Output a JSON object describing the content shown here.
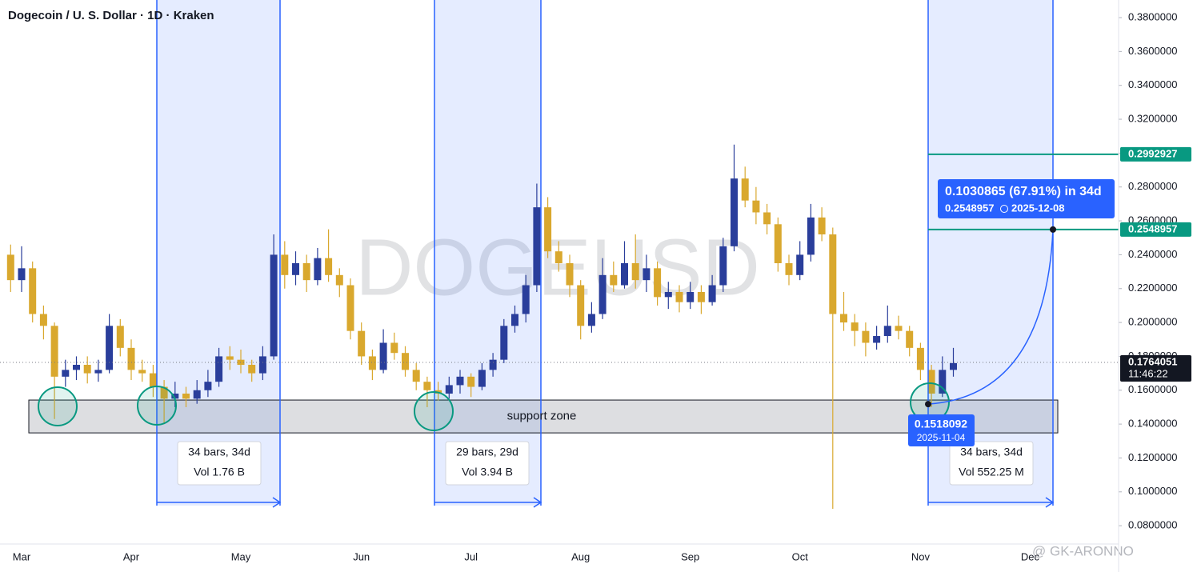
{
  "chart_data": {
    "type": "candlestick",
    "title": "Dogecoin / U. S. Dollar · 1D · Kraken",
    "watermark": "DOGEUSD",
    "categories": [
      null,
      "Mar",
      null,
      null,
      null,
      null,
      null,
      null,
      null,
      null,
      null,
      "Apr",
      null,
      null,
      null,
      null,
      null,
      null,
      null,
      null,
      null,
      "May",
      null,
      null,
      null,
      null,
      null,
      null,
      null,
      null,
      null,
      null,
      "Jun",
      null,
      null,
      null,
      null,
      null,
      null,
      null,
      null,
      null,
      "Jul",
      null,
      null,
      null,
      null,
      null,
      null,
      null,
      null,
      null,
      "Aug",
      null,
      null,
      null,
      null,
      null,
      null,
      null,
      null,
      null,
      "Sep",
      null,
      null,
      null,
      null,
      null,
      null,
      null,
      null,
      null,
      "Oct",
      null,
      null,
      null,
      null,
      null,
      null,
      null,
      null,
      null,
      null,
      "Nov",
      null,
      null,
      null,
      null,
      null,
      null,
      null,
      null,
      null,
      "Dec"
    ],
    "open": [
      0.24,
      0.225,
      0.232,
      0.205,
      0.198,
      0.168,
      0.172,
      0.175,
      0.17,
      0.172,
      0.198,
      0.185,
      0.172,
      0.17,
      0.162,
      0.155,
      0.158,
      0.155,
      0.16,
      0.165,
      0.18,
      0.178,
      0.175,
      0.17,
      0.18,
      0.24,
      0.228,
      0.235,
      0.225,
      0.238,
      0.228,
      0.222,
      0.195,
      0.18,
      0.172,
      0.188,
      0.182,
      0.172,
      0.165,
      0.16,
      0.158,
      0.163,
      0.168,
      0.162,
      0.172,
      0.178,
      0.198,
      0.205,
      0.222,
      0.268,
      0.242,
      0.235,
      0.222,
      0.198,
      0.205,
      0.228,
      0.222,
      0.235,
      0.225,
      0.232,
      0.215,
      0.218,
      0.212,
      0.218,
      0.212,
      0.222,
      0.245,
      0.285,
      0.272,
      0.265,
      0.258,
      0.235,
      0.228,
      0.24,
      0.262,
      0.252,
      0.205,
      0.2,
      0.195,
      0.188,
      0.192,
      0.198,
      0.195,
      0.185,
      0.172,
      0.158,
      0.172,
      null,
      null,
      null,
      null,
      null,
      null,
      null
    ],
    "high": [
      0.246,
      0.245,
      0.236,
      0.21,
      0.2,
      0.178,
      0.18,
      0.18,
      0.178,
      0.205,
      0.202,
      0.19,
      0.178,
      0.175,
      0.166,
      0.165,
      0.162,
      0.166,
      0.172,
      0.185,
      0.186,
      0.184,
      0.178,
      0.186,
      0.252,
      0.248,
      0.242,
      0.24,
      0.244,
      0.255,
      0.232,
      0.226,
      0.2,
      0.184,
      0.196,
      0.194,
      0.186,
      0.176,
      0.168,
      0.165,
      0.168,
      0.172,
      0.17,
      0.176,
      0.182,
      0.202,
      0.21,
      0.228,
      0.282,
      0.274,
      0.248,
      0.24,
      0.225,
      0.212,
      0.238,
      0.236,
      0.248,
      0.252,
      0.24,
      0.236,
      0.224,
      0.222,
      0.224,
      0.222,
      0.228,
      0.25,
      0.305,
      0.292,
      0.28,
      0.27,
      0.262,
      0.24,
      0.248,
      0.27,
      0.268,
      0.256,
      0.218,
      0.205,
      0.2,
      0.198,
      0.21,
      0.204,
      0.198,
      0.188,
      0.175,
      0.18,
      0.185,
      null,
      null,
      null,
      null,
      null,
      null,
      null
    ],
    "low": [
      0.218,
      0.218,
      0.2,
      0.19,
      0.143,
      0.162,
      0.166,
      0.164,
      0.165,
      0.17,
      0.18,
      0.166,
      0.165,
      0.156,
      0.14,
      0.15,
      0.15,
      0.152,
      0.156,
      0.162,
      0.172,
      0.17,
      0.165,
      0.166,
      0.178,
      0.22,
      0.222,
      0.218,
      0.222,
      0.224,
      0.215,
      0.19,
      0.175,
      0.166,
      0.17,
      0.178,
      0.168,
      0.16,
      0.15,
      0.154,
      0.155,
      0.158,
      0.156,
      0.16,
      0.168,
      0.176,
      0.194,
      0.2,
      0.218,
      0.238,
      0.23,
      0.215,
      0.19,
      0.194,
      0.202,
      0.218,
      0.22,
      0.22,
      0.218,
      0.21,
      0.208,
      0.206,
      0.208,
      0.205,
      0.21,
      0.218,
      0.242,
      0.268,
      0.258,
      0.252,
      0.23,
      0.222,
      0.225,
      0.236,
      0.248,
      0.09,
      0.195,
      0.186,
      0.18,
      0.184,
      0.188,
      0.19,
      0.18,
      0.166,
      0.15,
      0.156,
      0.168,
      null,
      null,
      null,
      null,
      null,
      null,
      null
    ],
    "close": [
      0.225,
      0.232,
      0.205,
      0.198,
      0.168,
      0.172,
      0.175,
      0.17,
      0.172,
      0.198,
      0.185,
      0.172,
      0.17,
      0.162,
      0.155,
      0.158,
      0.155,
      0.16,
      0.165,
      0.18,
      0.178,
      0.175,
      0.17,
      0.18,
      0.24,
      0.228,
      0.235,
      0.225,
      0.238,
      0.228,
      0.222,
      0.195,
      0.18,
      0.172,
      0.188,
      0.182,
      0.172,
      0.165,
      0.16,
      0.158,
      0.163,
      0.168,
      0.162,
      0.172,
      0.178,
      0.198,
      0.205,
      0.222,
      0.268,
      0.242,
      0.235,
      0.222,
      0.198,
      0.205,
      0.228,
      0.222,
      0.235,
      0.225,
      0.232,
      0.215,
      0.218,
      0.212,
      0.218,
      0.212,
      0.222,
      0.245,
      0.285,
      0.272,
      0.265,
      0.258,
      0.235,
      0.228,
      0.24,
      0.262,
      0.252,
      0.205,
      0.2,
      0.195,
      0.188,
      0.192,
      0.198,
      0.195,
      0.185,
      0.172,
      0.158,
      0.172,
      0.176,
      null,
      null,
      null,
      null,
      null,
      null,
      null
    ],
    "up_color": "#2a3e9b",
    "down_color": "#d9a82e",
    "ylim": [
      0.0692,
      0.3904
    ],
    "yticks": [
      {
        "value": 0.08,
        "label": "0.0800000"
      },
      {
        "value": 0.1,
        "label": "0.1000000"
      },
      {
        "value": 0.12,
        "label": "0.1200000"
      },
      {
        "value": 0.14,
        "label": "0.1400000"
      },
      {
        "value": 0.16,
        "label": "0.1600000"
      },
      {
        "value": 0.18,
        "label": "0.1800000"
      },
      {
        "value": 0.2,
        "label": "0.2000000"
      },
      {
        "value": 0.22,
        "label": "0.2200000"
      },
      {
        "value": 0.24,
        "label": "0.2400000"
      },
      {
        "value": 0.26,
        "label": "0.2600000"
      },
      {
        "value": 0.28,
        "label": "0.2800000"
      },
      {
        "value": 0.3,
        "label": "0.3000000"
      },
      {
        "value": 0.32,
        "label": "0.3200000"
      },
      {
        "value": 0.34,
        "label": "0.3400000"
      },
      {
        "value": 0.36,
        "label": "0.3600000"
      },
      {
        "value": 0.38,
        "label": "0.3800000"
      }
    ],
    "last_price": {
      "value": 0.1764051,
      "countdown": "11:46:22"
    },
    "price_lines": [
      {
        "value": 0.2992927,
        "color": "#089981"
      },
      {
        "value": 0.2548957,
        "color": "#089981"
      }
    ],
    "support_zone": {
      "label": "support zone",
      "range": [
        0.1348,
        0.1542
      ]
    },
    "date_ranges": [
      {
        "bars": "34 bars, 34d",
        "vol": "Vol 1.76 B"
      },
      {
        "bars": "29 bars, 29d",
        "vol": "Vol 3.94 B"
      },
      {
        "bars": "34 bars, 34d",
        "vol": "Vol 552.25 M"
      }
    ],
    "projection": {
      "headline": "0.1030865 (67.91%) in 34d",
      "start": 0.1518092,
      "start_date": "2025-11-04",
      "target": 0.2548957,
      "target_date": "2025-12-08"
    },
    "credit": "@ GK-ARONNO"
  }
}
